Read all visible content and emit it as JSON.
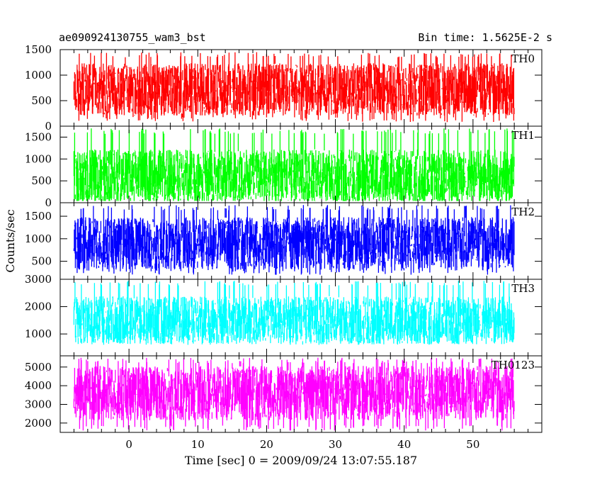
{
  "header": {
    "title": "ae090924130755_wam3_bst",
    "bin_time": "Bin time: 1.5625E-2 s"
  },
  "chart_data": {
    "type": "line",
    "title": "ae090924130755_wam3_bst",
    "xlabel": "Time [sec] 0 = 2009/09/24 13:07:55.187",
    "ylabel": "Counts/sec",
    "xlim": [
      -10,
      60
    ],
    "data_x_range": [
      -8,
      56
    ],
    "x_ticks": [
      0,
      10,
      20,
      30,
      40,
      50
    ],
    "grid": false,
    "panels": [
      {
        "name": "TH0",
        "color": "#ff0000",
        "ylim": [
          0,
          1500
        ],
        "y_ticks": [
          0,
          500,
          1000,
          1500
        ],
        "mean": 720,
        "min": 80,
        "max": 1450
      },
      {
        "name": "TH1",
        "color": "#00ff00",
        "ylim": [
          0,
          1750
        ],
        "y_ticks": [
          0,
          500,
          1000,
          1500
        ],
        "mean": 600,
        "min": 40,
        "max": 1700
      },
      {
        "name": "TH2",
        "color": "#0000ff",
        "ylim": [
          100,
          1800
        ],
        "y_ticks": [
          500,
          1000,
          1500
        ],
        "mean": 900,
        "min": 200,
        "max": 1750
      },
      {
        "name": "TH3",
        "color": "#00ffff",
        "ylim": [
          200,
          3000
        ],
        "y_ticks": [
          1000,
          2000,
          3000
        ],
        "mean": 1500,
        "min": 600,
        "max": 2950
      },
      {
        "name": "TH0123",
        "color": "#ff00ff",
        "ylim": [
          1500,
          5600
        ],
        "y_ticks": [
          2000,
          3000,
          4000,
          5000
        ],
        "mean": 3600,
        "min": 1600,
        "max": 5500
      }
    ]
  }
}
